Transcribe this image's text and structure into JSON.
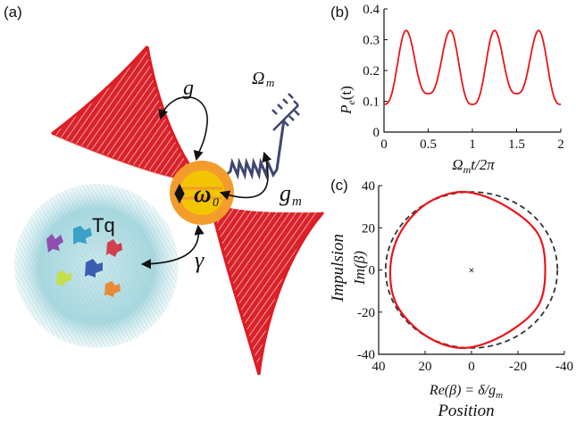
{
  "panels": {
    "a": {
      "label": "(a)",
      "g_label": "g",
      "gm_label": "g",
      "gm_sub": "m",
      "omega_m_label": "Ω",
      "omega_m_sub": "m",
      "omega0_label": "ω",
      "omega0_sub": "0",
      "gamma_label": "γ",
      "tq_label": "Tq",
      "colors": {
        "cone": "#e01b22",
        "ring": "#f39c2b",
        "core": "#f2c500",
        "spring": "#3f466f",
        "bath": "#8fc9d2"
      }
    },
    "b": {
      "label": "(b)",
      "ylabel": "P",
      "ylabel_sub": "e",
      "ylabel_arg": "(t)",
      "xlabel": "Ω",
      "xlabel_sub": "m",
      "xlabel_rest": "t/2π",
      "xticks": [
        "0",
        "0.5",
        "1",
        "1.5",
        "2"
      ],
      "yticks": [
        "0",
        "0.1",
        "0.2",
        "0.3",
        "0.4"
      ]
    },
    "c": {
      "label": "(c)",
      "ylabel": "Im(β)",
      "ylabel_outer": "Impulsion",
      "xlabel": "Re(β) = δ/g",
      "xlabel_sub": "m",
      "xlabel_outer": "Position",
      "xticks": [
        "40",
        "20",
        "0",
        "-20",
        "-40"
      ],
      "yticks": [
        "40",
        "20",
        "0",
        "-20",
        "-40"
      ],
      "center_marker": "×"
    }
  },
  "chart_data": [
    {
      "type": "line",
      "panel": "b",
      "xlabel": "Ωmt/2π",
      "ylabel": "Pe(t)",
      "xlim": [
        0,
        2
      ],
      "ylim": [
        0,
        0.4
      ],
      "series": [
        {
          "color": "#e8161b",
          "x": [
            0,
            0.25,
            0.5,
            0.75,
            1.0,
            1.25,
            1.5,
            1.75,
            2.0
          ],
          "values": [
            0.09,
            0.33,
            0.125,
            0.33,
            0.09,
            0.33,
            0.125,
            0.33,
            0.09
          ]
        }
      ]
    },
    {
      "type": "line",
      "panel": "c",
      "xlabel": "Re(β) = δ/gm",
      "ylabel": "Im(β)",
      "xlim": [
        40,
        -40
      ],
      "ylim": [
        -40,
        40
      ],
      "series": [
        {
          "style": "solid",
          "color": "#e8161b",
          "x": [
            5,
            20,
            31,
            35,
            32,
            20,
            5,
            -10,
            -25,
            -31,
            -31,
            -25,
            -10,
            5
          ],
          "values": [
            37,
            31,
            17,
            0,
            -17,
            -31,
            -37,
            -33,
            -22,
            -10,
            10,
            22,
            33,
            37
          ]
        },
        {
          "style": "dashed",
          "color": "#333333",
          "center": [
            0,
            0
          ],
          "radius": 37
        }
      ],
      "markers": [
        {
          "x": 0,
          "y": 0,
          "symbol": "×"
        }
      ]
    }
  ]
}
